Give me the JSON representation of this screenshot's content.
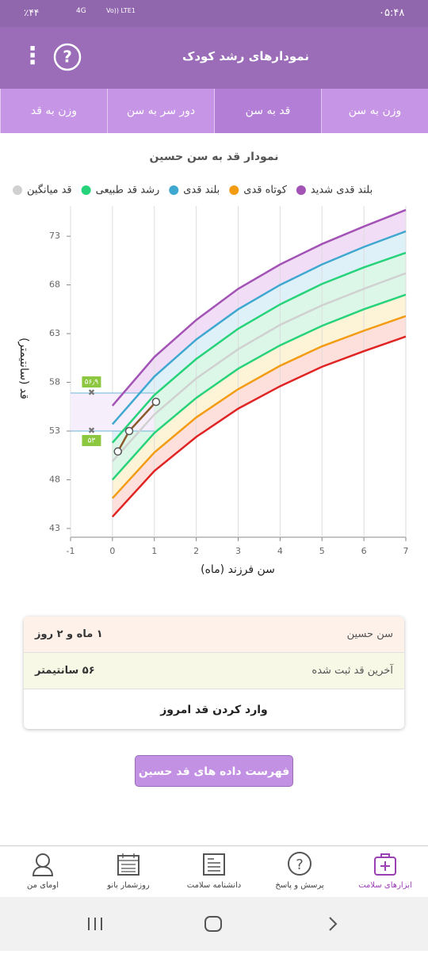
{
  "status_bar": {
    "battery": "٪۴۴",
    "network": "4G",
    "volte": "Vo)) LTE1",
    "time": "۰۵:۴۸"
  },
  "header": {
    "title": "نمودارهای رشد کودک"
  },
  "tabs": [
    "وزن به سن",
    "قد به سن",
    "دور سر به سن",
    "وزن به قد"
  ],
  "active_tab": 1,
  "chart_data": {
    "type": "line",
    "title": "نمودار قد به سن حسین",
    "x_label": "سن فرزند (ماه)",
    "y_label": "قد (سانتیمتر)",
    "x": [
      0,
      1,
      2,
      3,
      4,
      5,
      6,
      7
    ],
    "xlim": [
      -1,
      7
    ],
    "xticks": [
      -1,
      0,
      1,
      2,
      3,
      4,
      5,
      6,
      7
    ],
    "ylim": [
      42.1,
      76.1
    ],
    "yticks": [
      43,
      48,
      53,
      58,
      63,
      68,
      73
    ],
    "grid": true,
    "series": [
      {
        "name": "بلند قدی شدید",
        "color": "#a352b5",
        "values": [
          55.6,
          60.6,
          64.4,
          67.6,
          70.1,
          72.2,
          74.0,
          75.7
        ]
      },
      {
        "name": "کوتاه قدی",
        "color": "#f39c12",
        "values": [
          46.1,
          50.8,
          54.4,
          57.3,
          59.7,
          61.7,
          63.3,
          64.8
        ]
      },
      {
        "name": "بلند قدی",
        "color": "#3fa8d0",
        "values": [
          53.7,
          58.6,
          62.4,
          65.5,
          68.0,
          70.1,
          71.9,
          73.5
        ]
      },
      {
        "name": "رشد قد طبیعی",
        "color": "#27d37a",
        "values": [
          51.8,
          56.7,
          60.4,
          63.5,
          66.0,
          68.1,
          69.8,
          71.3
        ]
      },
      {
        "name": "قد میانگین",
        "color": "#d0d0d0",
        "values": [
          49.9,
          54.7,
          58.4,
          61.4,
          63.9,
          65.9,
          67.6,
          69.2
        ]
      },
      {
        "color": "#27d37a",
        "values": [
          48.0,
          52.8,
          56.4,
          59.4,
          61.8,
          63.8,
          65.5,
          67.0
        ]
      },
      {
        "color": "#e02424",
        "values": [
          44.2,
          48.9,
          52.4,
          55.3,
          57.6,
          59.6,
          61.2,
          62.7
        ]
      }
    ],
    "bands": [
      [
        0,
        2,
        "#f1def6"
      ],
      [
        2,
        3,
        "#dff1f8"
      ],
      [
        3,
        4,
        "#dcf7e8"
      ],
      [
        4,
        5,
        "#dcf7e8"
      ],
      [
        5,
        1,
        "#fdf3d6"
      ],
      [
        1,
        6,
        "#fde0dc"
      ]
    ],
    "child": {
      "color": "#8b5a2b",
      "x": [
        0.13,
        0.4,
        1.04
      ],
      "values": [
        50.9,
        53.0,
        56.0
      ]
    },
    "markers": [
      {
        "x": -0.5,
        "value": 56.9,
        "label": "۵۶٫۹"
      },
      {
        "x": -0.5,
        "value": 53,
        "label": "۵۳"
      }
    ]
  },
  "info": {
    "rows": [
      [
        "سن حسین",
        "۱ ماه و ۲ روز"
      ],
      [
        "آخرین قد ثبت شده",
        "۵۶ سانتیمتر"
      ]
    ],
    "action": "وارد کردن قد امروز"
  },
  "list_button": "فهرست داده های قد حسین",
  "bottom_nav": [
    "ابزارهای سلامت",
    "پرسش و پاسخ",
    "دانشنامه سلامت",
    "روزشمار بانو",
    "اومای من"
  ]
}
